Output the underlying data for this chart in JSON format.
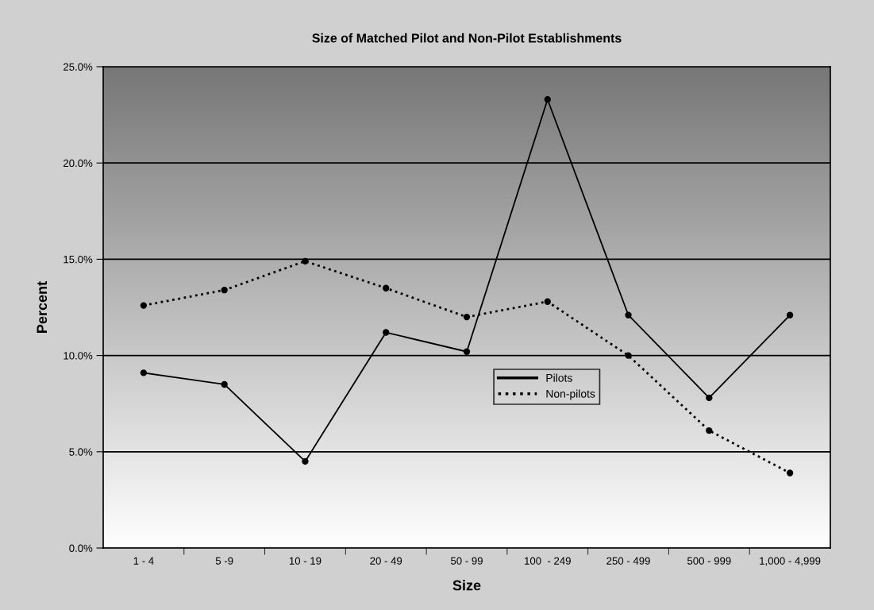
{
  "chart_data": {
    "type": "line",
    "title": "Size of Matched Pilot and Non-Pilot Establishments",
    "xlabel": "Size",
    "ylabel": "Percent",
    "categories": [
      "1 - 4",
      "5 -9",
      "10 - 19",
      "20 - 49",
      "50 - 99",
      "100  - 249",
      "250 - 499",
      "500 - 999",
      "1,000 - 4,999"
    ],
    "series": [
      {
        "name": "Pilots",
        "color": "#000000",
        "line_style": "solid",
        "values": [
          9.1,
          8.5,
          4.5,
          11.2,
          10.2,
          23.3,
          12.1,
          7.8,
          12.1
        ]
      },
      {
        "name": "Non-pilots",
        "color": "#000000",
        "line_style": "dotted",
        "values": [
          12.6,
          13.4,
          14.9,
          13.5,
          12.0,
          12.8,
          10.0,
          6.1,
          3.9
        ]
      }
    ],
    "ylim": [
      0,
      25
    ],
    "yticks": [
      {
        "value": 0,
        "label": "0.0%"
      },
      {
        "value": 5,
        "label": "5.0%"
      },
      {
        "value": 10,
        "label": "10.0%"
      },
      {
        "value": 15,
        "label": "15.0%"
      },
      {
        "value": 20,
        "label": "20.0%"
      },
      {
        "value": 25,
        "label": "25.0%"
      }
    ],
    "grid": "y",
    "legend": "center",
    "marker": "circle"
  }
}
